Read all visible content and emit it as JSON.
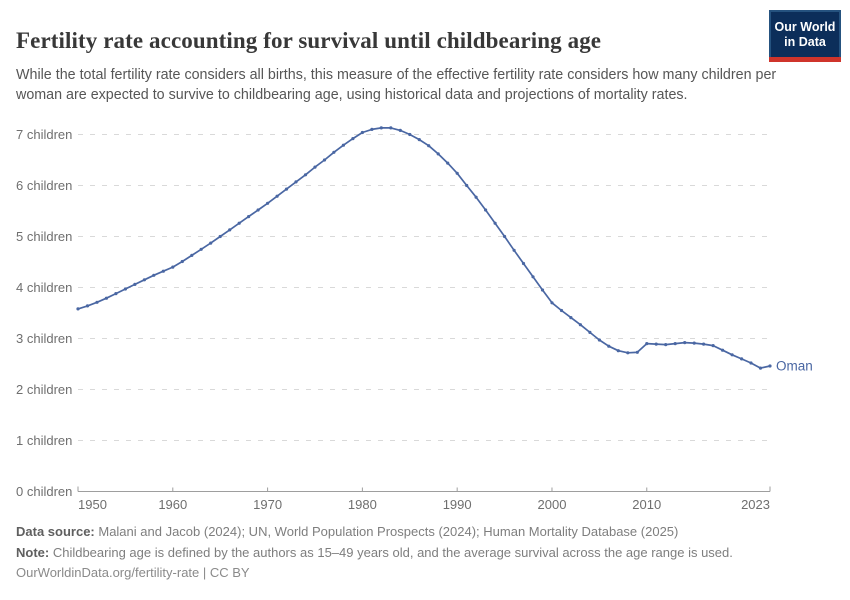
{
  "header": {
    "title": "Fertility rate accounting for survival until childbearing age",
    "subtitle": "While the total fertility rate considers all births, this measure of the effective fertility rate considers how many children per woman are expected to survive to childbearing age, using historical data and projections of mortality rates."
  },
  "logo": {
    "line1": "Our World",
    "line2": "in Data",
    "bg_color": "#0c2e5a",
    "accent_color": "#cf342b"
  },
  "chart_data": {
    "type": "line",
    "title": "Fertility rate accounting for survival until childbearing age",
    "entity": "Oman",
    "grid": "horizontal-dashed",
    "legend_position": "end-of-line-label",
    "xlim": [
      1950,
      2023
    ],
    "ylim": [
      0,
      7.4
    ],
    "xticks": [
      1950,
      1960,
      1970,
      1980,
      1990,
      2000,
      2010,
      2023
    ],
    "yticks": [
      0,
      1,
      2,
      3,
      4,
      5,
      6,
      7
    ],
    "ytick_label_format": "{} children",
    "series": [
      {
        "name": "Oman",
        "color": "#4a67a3",
        "x": [
          1950,
          1951,
          1952,
          1953,
          1954,
          1955,
          1956,
          1957,
          1958,
          1959,
          1960,
          1961,
          1962,
          1963,
          1964,
          1965,
          1966,
          1967,
          1968,
          1969,
          1970,
          1971,
          1972,
          1973,
          1974,
          1975,
          1976,
          1977,
          1978,
          1979,
          1980,
          1981,
          1982,
          1983,
          1984,
          1985,
          1986,
          1987,
          1988,
          1989,
          1990,
          1991,
          1992,
          1993,
          1994,
          1995,
          1996,
          1997,
          1998,
          1999,
          2000,
          2001,
          2002,
          2003,
          2004,
          2005,
          2006,
          2007,
          2008,
          2009,
          2010,
          2011,
          2012,
          2013,
          2014,
          2015,
          2016,
          2017,
          2018,
          2019,
          2020,
          2021,
          2022,
          2023
        ],
        "values": [
          3.58,
          3.64,
          3.71,
          3.79,
          3.88,
          3.97,
          4.06,
          4.15,
          4.24,
          4.32,
          4.4,
          4.51,
          4.63,
          4.75,
          4.87,
          5.0,
          5.13,
          5.26,
          5.39,
          5.52,
          5.65,
          5.79,
          5.93,
          6.07,
          6.21,
          6.36,
          6.5,
          6.65,
          6.79,
          6.92,
          7.04,
          7.1,
          7.13,
          7.13,
          7.08,
          7.0,
          6.9,
          6.78,
          6.62,
          6.44,
          6.24,
          6.0,
          5.77,
          5.52,
          5.26,
          5.0,
          4.73,
          4.47,
          4.21,
          3.95,
          3.7,
          3.55,
          3.41,
          3.27,
          3.12,
          2.97,
          2.85,
          2.76,
          2.72,
          2.73,
          2.9,
          2.89,
          2.88,
          2.9,
          2.92,
          2.91,
          2.89,
          2.86,
          2.77,
          2.68,
          2.6,
          2.52,
          2.42,
          2.46
        ]
      }
    ],
    "colors": {
      "gridline": "#d9d9d9",
      "axis": "#9e9e9e",
      "tick_label": "#6f6f6f"
    }
  },
  "footer": {
    "datasource_label": "Data source:",
    "datasource_text": " Malani and Jacob (2024); UN, World Population Prospects (2024); Human Mortality Database (2025)",
    "note_label": "Note:",
    "note_text": " Childbearing age is defined by the authors as 15–49 years old, and the average survival across the age range is used.",
    "url_text": "OurWorldinData.org/fertility-rate | CC BY"
  }
}
